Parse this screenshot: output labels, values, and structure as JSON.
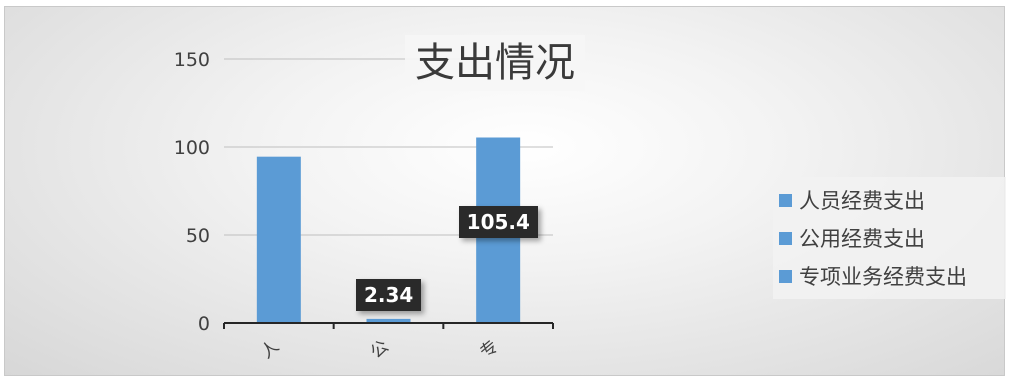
{
  "chart_data": {
    "type": "bar",
    "title": "支出情况",
    "categories": [
      "人",
      "公",
      "专"
    ],
    "values": [
      94.5,
      2.34,
      105.4
    ],
    "data_labels": [
      "",
      "2.34",
      "105.4"
    ],
    "ylim": [
      0,
      150
    ],
    "y_ticks": [
      "0",
      "50",
      "100",
      "150"
    ],
    "legend": [
      "人员经费支出",
      "公用经费支出",
      "专项业务经费支出"
    ],
    "legend_position": "right",
    "grid": true,
    "bar_color": "#5b9bd5"
  }
}
